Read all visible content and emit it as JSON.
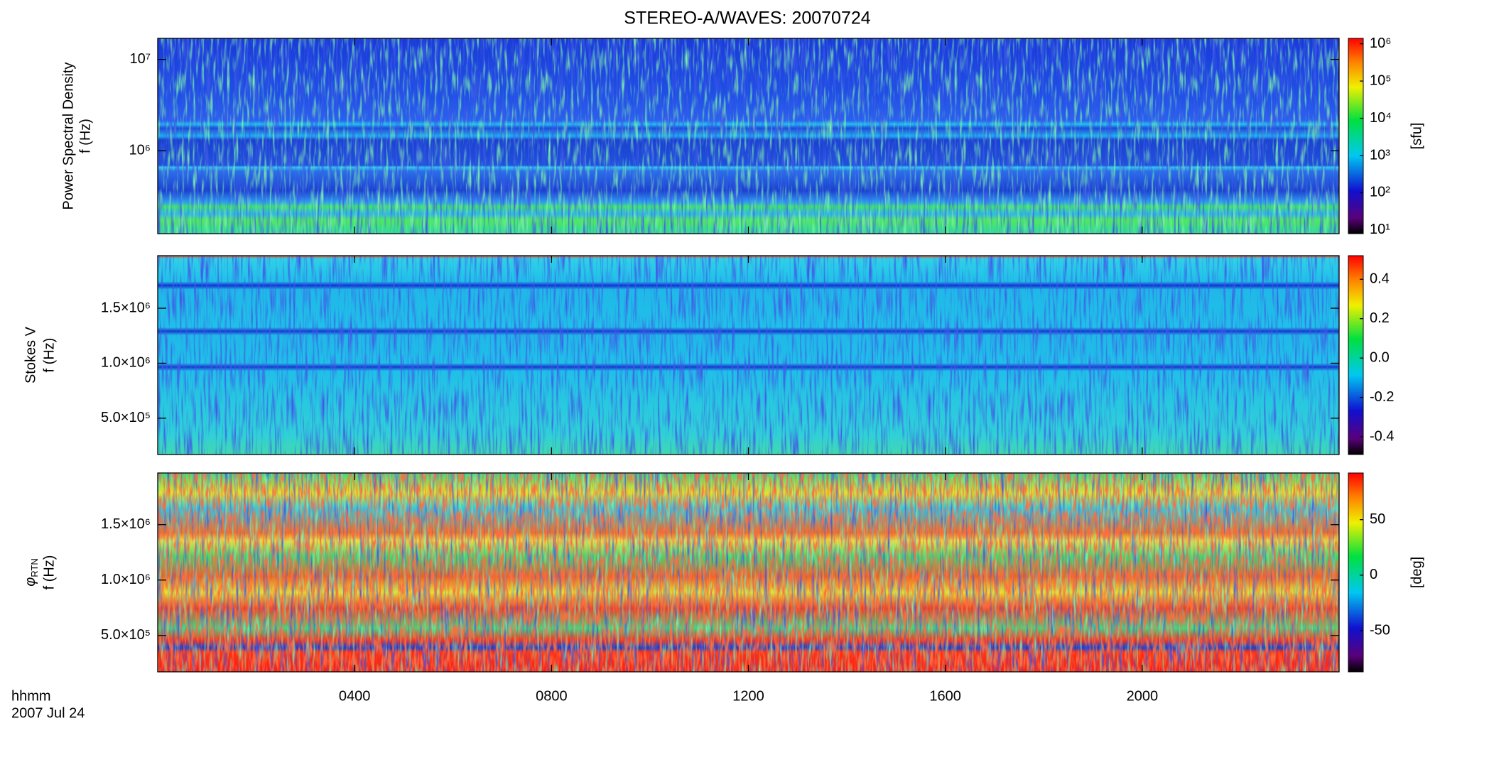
{
  "chart_data": [
    {
      "type": "spectrogram",
      "title": "STEREO-A/WAVES: 20070724",
      "ylabel": [
        "Power Spectral Density",
        "f (Hz)"
      ],
      "log_y": true,
      "ylim": [
        124000,
        17000000
      ],
      "yticks": [
        {
          "value": 1000000,
          "label": "10⁶"
        },
        {
          "value": 10000000,
          "label": "10⁷"
        }
      ],
      "xlim": [
        0,
        24
      ],
      "colorbar": {
        "log": true,
        "clim": [
          8,
          1400000
        ],
        "label": "[sfu]",
        "ticks": [
          {
            "value": 10,
            "label": "10¹"
          },
          {
            "value": 100,
            "label": "10²"
          },
          {
            "value": 1000,
            "label": "10³"
          },
          {
            "value": 10000,
            "label": "10⁴"
          },
          {
            "value": 100000,
            "label": "10⁵"
          },
          {
            "value": 1000000,
            "label": "10⁶"
          }
        ]
      }
    },
    {
      "type": "spectrogram",
      "ylabel": [
        "Stokes V",
        "f (Hz)"
      ],
      "log_y": false,
      "ylim": [
        170000,
        1978000
      ],
      "yticks": [
        {
          "value": 500000,
          "label": "5.0×10⁵"
        },
        {
          "value": 1000000,
          "label": "1.0×10⁶"
        },
        {
          "value": 1500000,
          "label": "1.5×10⁶"
        }
      ],
      "xlim": [
        0,
        24
      ],
      "colorbar": {
        "log": false,
        "clim": [
          -0.49,
          0.52
        ],
        "ticks": [
          {
            "value": -0.4,
            "label": "-0.4"
          },
          {
            "value": -0.2,
            "label": "-0.2"
          },
          {
            "value": 0,
            "label": "0.0"
          },
          {
            "value": 0.2,
            "label": "0.2"
          },
          {
            "value": 0.4,
            "label": "0.4"
          }
        ]
      }
    },
    {
      "type": "spectrogram",
      "ylabel": [
        {
          "text": "φ",
          "subscript": "RTN"
        },
        "f (Hz)"
      ],
      "log_y": false,
      "ylim": [
        172000,
        1966000
      ],
      "yticks": [
        {
          "value": 500000,
          "label": "5.0×10⁵"
        },
        {
          "value": 1000000,
          "label": "1.0×10⁶"
        },
        {
          "value": 1500000,
          "label": "1.5×10⁶"
        }
      ],
      "xlim": [
        0,
        24
      ],
      "xticks": [
        {
          "value": 4,
          "label": "0400"
        },
        {
          "value": 8,
          "label": "0800"
        },
        {
          "value": 12,
          "label": "1200"
        },
        {
          "value": 16,
          "label": "1600"
        },
        {
          "value": 20,
          "label": "2000"
        }
      ],
      "xlabel": [
        "hhmm",
        "2007 Jul 24"
      ],
      "colorbar": {
        "log": false,
        "clim": [
          -87,
          92
        ],
        "label": "[deg]",
        "ticks": [
          -50,
          0,
          50
        ]
      }
    }
  ]
}
